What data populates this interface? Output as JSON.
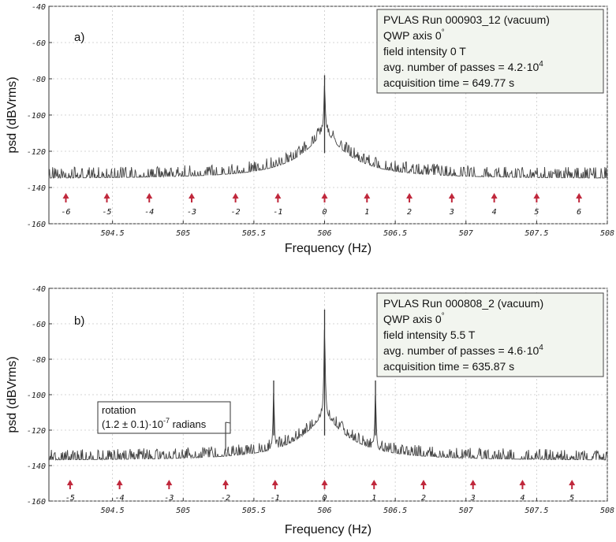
{
  "chart_data": [
    {
      "type": "line",
      "panel_label": "a)",
      "xlabel": "Frequency (Hz)",
      "ylabel": "psd (dBVrms)",
      "xlim": [
        504.05,
        508.0
      ],
      "ylim": [
        -160,
        -40
      ],
      "x_ticks": [
        504.5,
        505,
        505.5,
        506,
        506.5,
        507,
        507.5,
        508
      ],
      "x_tick_labels": [
        "504.5",
        "505",
        "505.5",
        "506",
        "506.5",
        "507",
        "507.5",
        "508"
      ],
      "y_ticks": [
        -40,
        -60,
        -80,
        -100,
        -120,
        -140,
        -160
      ],
      "y_tick_labels": [
        "-40",
        "-60",
        "-80",
        "-100",
        "-120",
        "-140",
        "-160"
      ],
      "grid": true,
      "info_box": {
        "lines": [
          "PVLAS Run 000903_12 (vacuum)",
          "QWP axis 0",
          "field intensity 0 T",
          "avg. number of passes = 4.2·10",
          "acquisition time = 649.77 s"
        ],
        "superscripts": [
          "",
          "°",
          "",
          "4",
          ""
        ]
      },
      "baseline_dB": -135,
      "noise_amplitude_dB": 6,
      "peaks": [
        {
          "x": 506.0,
          "y": -78
        }
      ],
      "markers": {
        "values": [
          504.17,
          504.46,
          504.76,
          505.06,
          505.37,
          505.67,
          506.0,
          506.3,
          506.6,
          506.9,
          507.2,
          507.5,
          507.8
        ],
        "labels": [
          "-6",
          "-5",
          "-4",
          "-3",
          "-2",
          "-1",
          "0",
          "1",
          "2",
          "3",
          "4",
          "5",
          "6"
        ]
      },
      "series": [
        {
          "color": "#444444"
        }
      ]
    },
    {
      "type": "line",
      "panel_label": "b)",
      "xlabel": "Frequency (Hz)",
      "ylabel": "psd (dBVrms)",
      "xlim": [
        504.05,
        508.0
      ],
      "ylim": [
        -160,
        -40
      ],
      "x_ticks": [
        504.5,
        505,
        505.5,
        506,
        506.5,
        507,
        507.5,
        508
      ],
      "x_tick_labels": [
        "504.5",
        "505",
        "505.5",
        "506",
        "506.5",
        "507",
        "507.5",
        "508"
      ],
      "y_ticks": [
        -40,
        -60,
        -80,
        -100,
        -120,
        -140,
        -160
      ],
      "y_tick_labels": [
        "-40",
        "-60",
        "-80",
        "-100",
        "-120",
        "-140",
        "-160"
      ],
      "grid": true,
      "info_box": {
        "lines": [
          "PVLAS Run 000808_2 (vacuum)",
          "QWP axis 0",
          "field intensity 5.5 T",
          "avg. number of passes = 4.6·10",
          "acquisition time = 635.87 s"
        ],
        "superscripts": [
          "",
          "°",
          "",
          "4",
          ""
        ]
      },
      "annotation": {
        "lines": [
          "rotation",
          "(1.2 ± 0.1)·10",
          " radians"
        ],
        "superscript": "-7",
        "points_to_x": 505.3,
        "points_to_y": -120
      },
      "baseline_dB": -137,
      "noise_amplitude_dB": 6,
      "peaks": [
        {
          "x": 505.64,
          "y": -92
        },
        {
          "x": 506.0,
          "y": -52
        },
        {
          "x": 506.36,
          "y": -92
        }
      ],
      "markers": {
        "values": [
          504.2,
          504.55,
          504.9,
          505.3,
          505.65,
          506.0,
          506.35,
          506.7,
          507.05,
          507.4,
          507.75
        ],
        "labels": [
          "-5",
          "-4",
          "-3",
          "-2",
          "-1",
          "0",
          "1",
          "2",
          "3",
          "4",
          "5"
        ]
      },
      "series": [
        {
          "color": "#444444"
        }
      ]
    }
  ]
}
